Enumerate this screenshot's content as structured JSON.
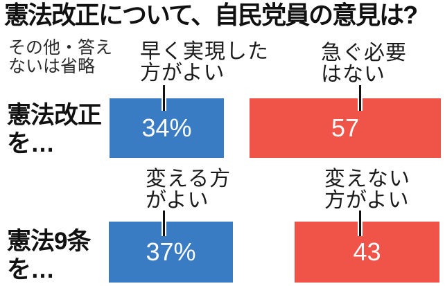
{
  "title": "憲法改正について、自民党員の意見は?",
  "note": {
    "line1": "その他・答え",
    "line2": "ないは省略",
    "full": "その他・答えないは省略"
  },
  "colors": {
    "agree_blue": "#3a7cc4",
    "oppose_red": "#f05448",
    "bar_value_text": "#ffffff",
    "text_black": "#111111"
  },
  "chart_data": {
    "type": "bar",
    "title": "憲法改正について、自民党員の意見は?",
    "note": "その他・答えないは省略",
    "unit": "%",
    "value_range": [
      0,
      100
    ],
    "legend_position": "above-bars",
    "grid": false,
    "rows": [
      {
        "topic": "憲法改正を…",
        "topic_line1": "憲法改正",
        "topic_line2": "を…",
        "bars": [
          {
            "answer": "早く実現した方がよい",
            "answer_line1": "早く実現した",
            "answer_line2": "方がよい",
            "value": 34,
            "display": "34%",
            "color": "#3a7cc4"
          },
          {
            "answer": "急ぐ必要はない",
            "answer_line1": "急ぐ必要",
            "answer_line2": "はない",
            "value": 57,
            "display": "57",
            "color": "#f05448"
          }
        ]
      },
      {
        "topic": "憲法9条を…",
        "topic_line1": "憲法9条",
        "topic_line2": "を…",
        "bars": [
          {
            "answer": "変える方がよい",
            "answer_line1": "変える方",
            "answer_line2": "がよい",
            "value": 37,
            "display": "37%",
            "color": "#3a7cc4"
          },
          {
            "answer": "変えない方がよい",
            "answer_line1": "変えない",
            "answer_line2": "方がよい",
            "value": 43,
            "display": "43",
            "color": "#f05448"
          }
        ]
      }
    ]
  }
}
